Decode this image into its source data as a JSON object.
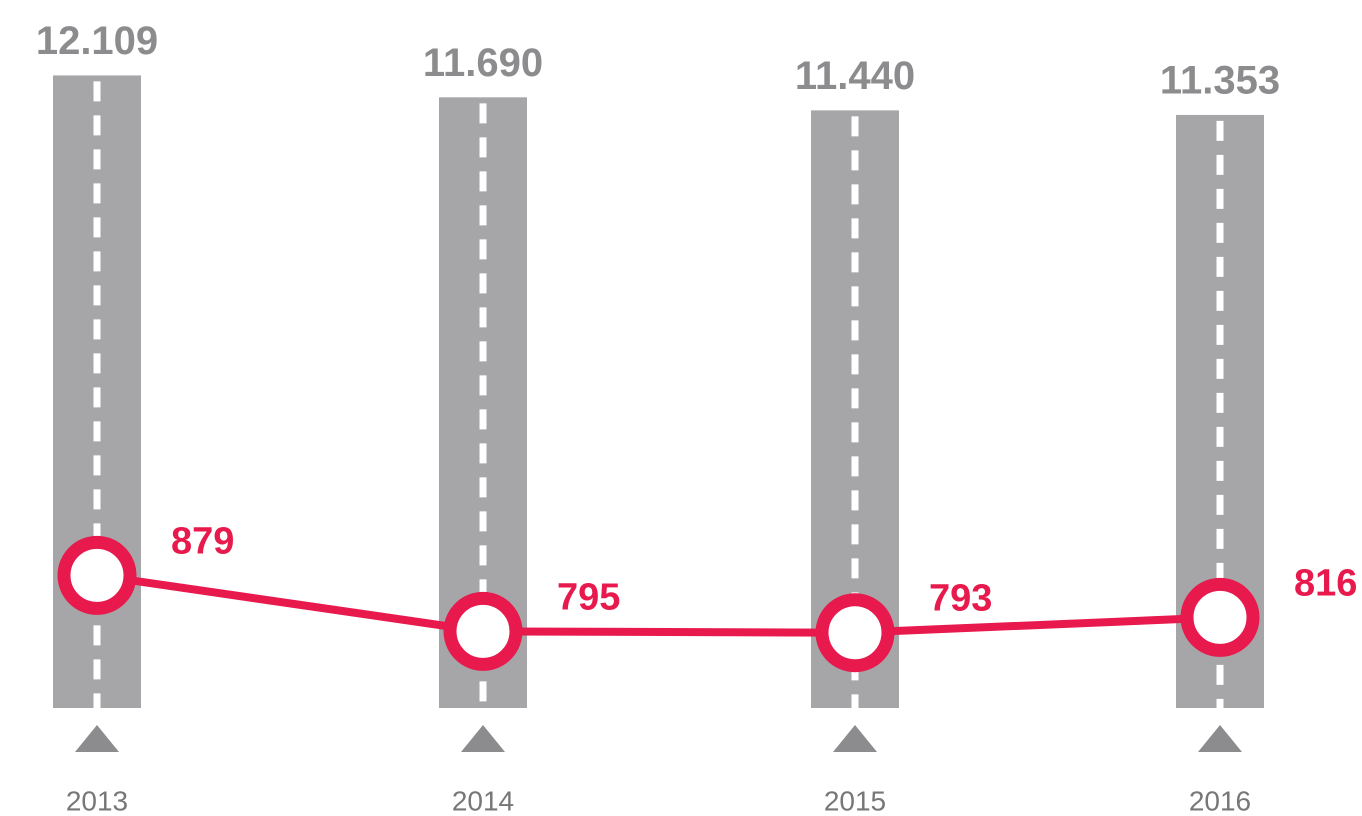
{
  "chart_data": {
    "type": "road_line",
    "categories": [
      "2013",
      "2014",
      "2015",
      "2016"
    ],
    "series": [
      {
        "color": "#a6a6a8",
        "values": [
          12109,
          11690,
          11440,
          11353
        ],
        "value_labels": [
          "12.109",
          "11.690",
          "11.440",
          "11.353"
        ]
      },
      {
        "color": "#e8194d",
        "values": [
          879,
          795,
          793,
          816
        ],
        "axis": "y2"
      }
    ],
    "ylim": [
      0,
      12500
    ],
    "y2lim": [
      680,
      1660
    ]
  }
}
